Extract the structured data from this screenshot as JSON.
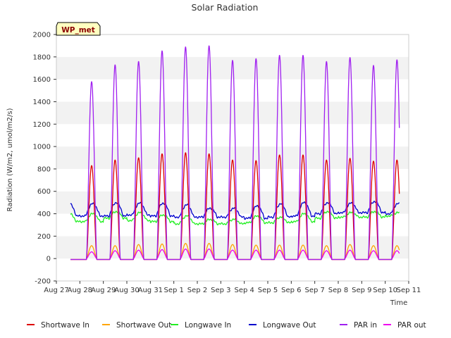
{
  "chart_data": {
    "type": "line",
    "title": "Solar Radiation",
    "xlabel": "Time",
    "ylabel": "Radiation (W/m2, umol/m2/s)",
    "ylim": [
      -200,
      2000
    ],
    "xlim": [
      0,
      15
    ],
    "yticks": [
      -200,
      0,
      200,
      400,
      600,
      800,
      1000,
      1200,
      1400,
      1600,
      1800,
      2000
    ],
    "x_tick_labels": [
      "Aug 27",
      "Aug 28",
      "Aug 29",
      "Aug 30",
      "Aug 31",
      "Sep 1",
      "Sep 2",
      "Sep 3",
      "Sep 4",
      "Sep 5",
      "Sep 6",
      "Sep 7",
      "Sep 8",
      "Sep 9",
      "Sep 10",
      "Sep 11"
    ],
    "x_units": "days since Aug 27",
    "grid": "horizontal bands",
    "legend_position": "bottom",
    "badge": "WP_met",
    "day_labels": [
      "Aug 28",
      "Aug 29",
      "Aug 30",
      "Aug 31",
      "Sep 1",
      "Sep 2",
      "Sep 3",
      "Sep 4",
      "Sep 5",
      "Sep 6",
      "Sep 7",
      "Sep 8",
      "Sep 9",
      "Sep 10"
    ],
    "series": [
      {
        "name": "Shortwave In",
        "color": "#dd0000",
        "kind": "daily_peak",
        "peaks": [
          830,
          880,
          900,
          935,
          945,
          935,
          880,
          875,
          925,
          925,
          880,
          895,
          870,
          880
        ]
      },
      {
        "name": "Shortwave Out",
        "color": "#ffa500",
        "kind": "daily_peak",
        "peaks": [
          115,
          115,
          125,
          130,
          135,
          135,
          125,
          120,
          120,
          120,
          115,
          125,
          115,
          115
        ]
      },
      {
        "name": "Longwave In",
        "color": "#22ee22",
        "kind": "daily_continuous",
        "day_values": [
          400,
          420,
          410,
          390,
          380,
          350,
          350,
          380,
          370,
          400,
          420,
          410,
          420,
          410
        ],
        "night_values": [
          330,
          360,
          340,
          330,
          310,
          310,
          310,
          320,
          320,
          330,
          360,
          370,
          370,
          380
        ]
      },
      {
        "name": "Longwave Out",
        "color": "#0000cc",
        "kind": "daily_continuous",
        "day_values": [
          490,
          500,
          495,
          495,
          480,
          450,
          450,
          470,
          490,
          500,
          500,
          495,
          510,
          490
        ],
        "night_values": [
          380,
          380,
          390,
          380,
          370,
          370,
          370,
          360,
          370,
          380,
          400,
          410,
          410,
          400
        ]
      },
      {
        "name": "PAR in",
        "color": "#a020f0",
        "kind": "daily_peak",
        "peaks": [
          1580,
          1730,
          1760,
          1855,
          1890,
          1900,
          1770,
          1785,
          1815,
          1815,
          1760,
          1795,
          1725,
          1775
        ]
      },
      {
        "name": "PAR out",
        "color": "#ee00ee",
        "kind": "daily_peak",
        "peaks": [
          60,
          70,
          75,
          80,
          85,
          85,
          75,
          75,
          75,
          75,
          70,
          75,
          70,
          70
        ]
      }
    ]
  }
}
